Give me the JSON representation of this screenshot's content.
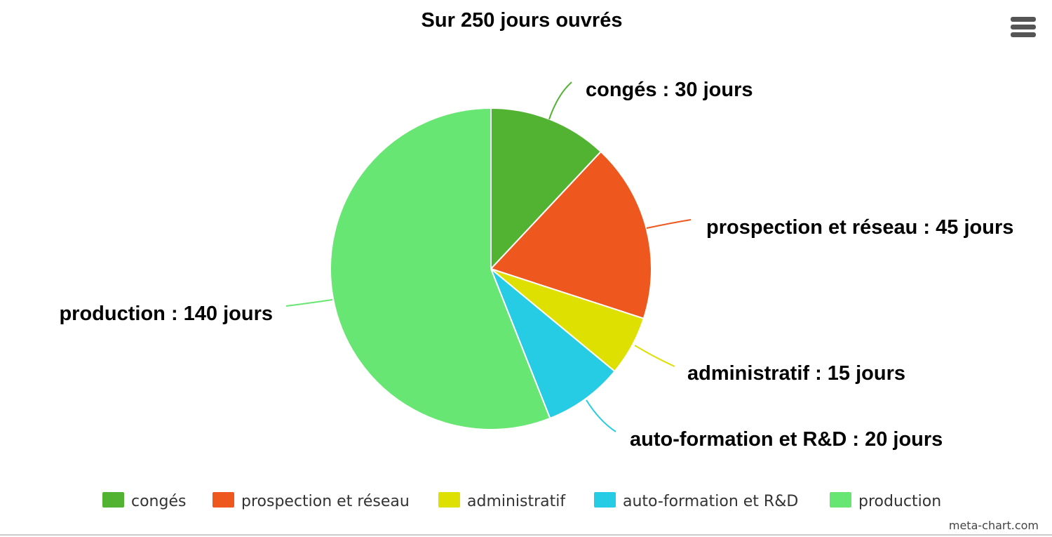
{
  "chart_data": {
    "type": "pie",
    "title": "Sur 250 jours ouvrés",
    "slices": [
      {
        "name": "congés",
        "value": 30,
        "label": "congés : 30 jours",
        "color": "#52b332"
      },
      {
        "name": "prospection et réseau",
        "value": 45,
        "label": "prospection et réseau : 45 jours",
        "color": "#ee581f"
      },
      {
        "name": "administratif",
        "value": 15,
        "label": "administratif : 15 jours",
        "color": "#dde000"
      },
      {
        "name": "auto-formation et R&D",
        "value": 20,
        "label": "auto-formation et R&D : 20 jours",
        "color": "#26cce3"
      },
      {
        "name": "production",
        "value": 140,
        "label": "production : 140 jours",
        "color": "#68e674"
      }
    ],
    "legend_position": "bottom"
  },
  "menu": {
    "icon": "hamburger-menu-icon"
  },
  "credit": "meta-chart.com"
}
